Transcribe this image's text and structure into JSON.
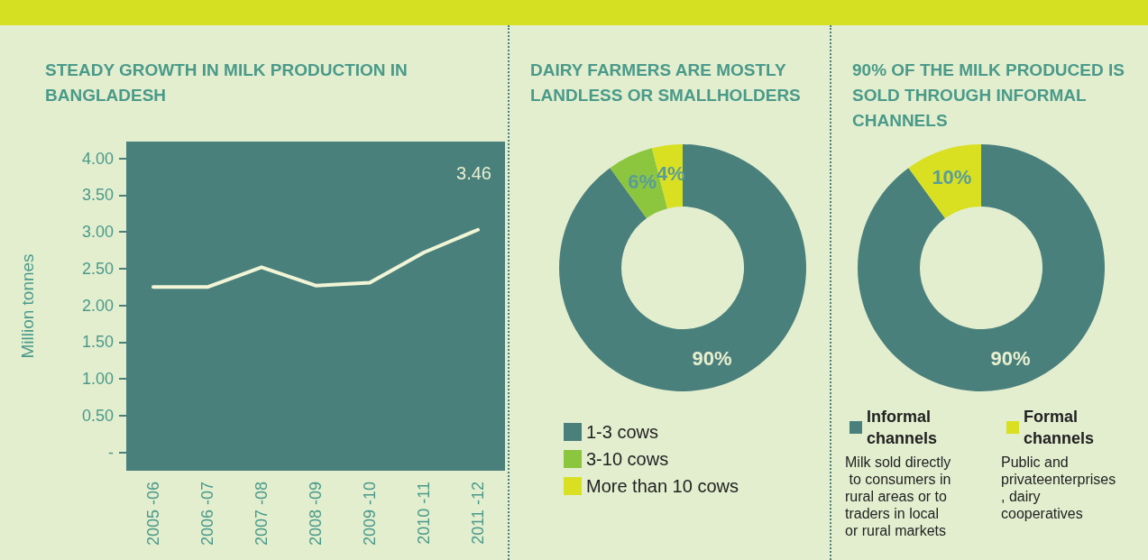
{
  "chart_data": [
    {
      "type": "line",
      "title": "STEADY GROWTH IN MILK PRODUCTION IN BANGLADESH",
      "ylabel": "Million tonnes",
      "categories": [
        "2005 -06",
        "2006 -07",
        "2007 -08",
        "2008 -09",
        "2009 -10",
        "2010 -11",
        "2011 -12"
      ],
      "series": [
        {
          "color": "#f1f5d6",
          "values": [
            2.25,
            2.25,
            2.52,
            2.27,
            2.31,
            2.72,
            3.03
          ]
        }
      ],
      "ylim": [
        -0.25,
        4.23
      ],
      "yticks": [
        {
          "value": 0,
          "label": "-"
        },
        {
          "value": 0.5,
          "label": "0.50"
        },
        {
          "value": 1,
          "label": "1.00"
        },
        {
          "value": 1.5,
          "label": "1.50"
        },
        {
          "value": 2,
          "label": "2.00"
        },
        {
          "value": 2.5,
          "label": "2.50"
        },
        {
          "value": 3,
          "label": "3.00"
        },
        {
          "value": 3.5,
          "label": "3.50"
        },
        {
          "value": 4,
          "label": "4.00"
        }
      ],
      "grid": false,
      "legend": false,
      "marker": "none",
      "line_style": "solid",
      "annotations": [
        "3.46"
      ]
    },
    {
      "type": "donut",
      "title": "DAIRY FARMERS ARE MOSTLY LANDLESS OR SMALLHOLDERS",
      "categories": [
        "1-3 cows",
        "3-10 cows",
        "More than 10 cows"
      ],
      "values": [
        90,
        6,
        4
      ],
      "colors": [
        "#4a807c",
        "#8cc63f",
        "#d9e021"
      ],
      "value_labels": [
        "90%",
        "6%",
        "4%"
      ],
      "legend": "bottom left"
    },
    {
      "type": "donut",
      "title": "90% OF THE MILK PRODUCED IS SOLD THROUGH INFORMAL CHANNELS",
      "categories": [
        "Informal channels",
        "Formal channels"
      ],
      "values": [
        90,
        10
      ],
      "colors": [
        "#4a807c",
        "#d9e021"
      ],
      "value_labels": [
        "90%",
        "10%"
      ],
      "legend": "bottom",
      "annotations": [
        "Milk sold directly to consumers in rural areas or to traders in local or rural markets",
        "Public and privateenterprises, dairy cooperatives"
      ]
    }
  ]
}
